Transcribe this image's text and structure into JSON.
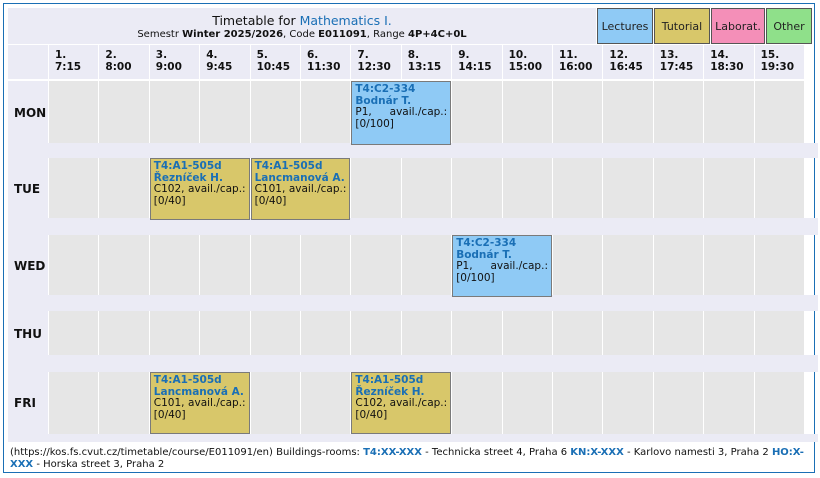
{
  "header": {
    "title_prefix": "Timetable for ",
    "course_name": "Mathematics I.",
    "semester_label": "Semestr ",
    "semester": "Winter 2025/2026",
    "code_label": ", Code ",
    "code": "E011091",
    "range_label": ", Range ",
    "range": "4P+4C+0L"
  },
  "legend": {
    "lectures": "Lectures",
    "tutorial": "Tutorial",
    "laborat": "Laborat.",
    "other": "Other",
    "colors": {
      "lectures": "#8fcaf5",
      "tutorial": "#d8c76a",
      "laborat": "#f48fb8",
      "other": "#8fe08a"
    }
  },
  "slots": [
    {
      "num": "1.",
      "time": "7:15"
    },
    {
      "num": "2.",
      "time": "8:00"
    },
    {
      "num": "3.",
      "time": "9:00"
    },
    {
      "num": "4.",
      "time": "9:45"
    },
    {
      "num": "5.",
      "time": "10:45"
    },
    {
      "num": "6.",
      "time": "11:30"
    },
    {
      "num": "7.",
      "time": "12:30"
    },
    {
      "num": "8.",
      "time": "13:15"
    },
    {
      "num": "9.",
      "time": "14:15"
    },
    {
      "num": "10.",
      "time": "15:00"
    },
    {
      "num": "11.",
      "time": "16:00"
    },
    {
      "num": "12.",
      "time": "16:45"
    },
    {
      "num": "13.",
      "time": "17:45"
    },
    {
      "num": "14.",
      "time": "18:30"
    },
    {
      "num": "15.",
      "time": "19:30"
    }
  ],
  "days": [
    "MON",
    "TUE",
    "WED",
    "THU",
    "FRI"
  ],
  "events": [
    {
      "day": 0,
      "slot": 6,
      "span": 2,
      "type": "lecture",
      "room": "T4:C2-334",
      "teacher": "Bodnár T.",
      "parallel": "P1,",
      "avail_label": "avail./cap.:",
      "capacity": "[0/100]"
    },
    {
      "day": 1,
      "slot": 2,
      "span": 2,
      "type": "tutorial",
      "room": "T4:A1-505d",
      "teacher": "Řezníček H.",
      "parallel": "C102,",
      "avail_label": "avail./cap.:",
      "capacity": "[0/40]"
    },
    {
      "day": 1,
      "slot": 4,
      "span": 2,
      "type": "tutorial",
      "room": "T4:A1-505d",
      "teacher": "Lancmanová A.",
      "parallel": "C101,",
      "avail_label": "avail./cap.:",
      "capacity": "[0/40]"
    },
    {
      "day": 2,
      "slot": 8,
      "span": 2,
      "type": "lecture",
      "room": "T4:C2-334",
      "teacher": "Bodnár T.",
      "parallel": "P1,",
      "avail_label": "avail./cap.:",
      "capacity": "[0/100]"
    },
    {
      "day": 4,
      "slot": 2,
      "span": 2,
      "type": "tutorial",
      "room": "T4:A1-505d",
      "teacher": "Lancmanová A.",
      "parallel": "C101,",
      "avail_label": "avail./cap.:",
      "capacity": "[0/40]"
    },
    {
      "day": 4,
      "slot": 6,
      "span": 2,
      "type": "tutorial",
      "room": "T4:A1-505d",
      "teacher": "Řezníček H.",
      "parallel": "C102,",
      "avail_label": "avail./cap.:",
      "capacity": "[0/40]"
    }
  ],
  "footer": {
    "url": "(https://kos.fs.cvut.cz/timetable/course/E011091/en)",
    "buildings_label": " Buildings-rooms: ",
    "b1_code": "T4:XX-XXX",
    "b1_desc": " - Technicka street 4, Praha 6 ",
    "b2_code": "KN:X-XXX",
    "b2_desc": " - Karlovo namesti 3, Praha 2 ",
    "b3_code": "HO:X-XXX",
    "b3_desc": " - Horska street 3, Praha 2"
  }
}
